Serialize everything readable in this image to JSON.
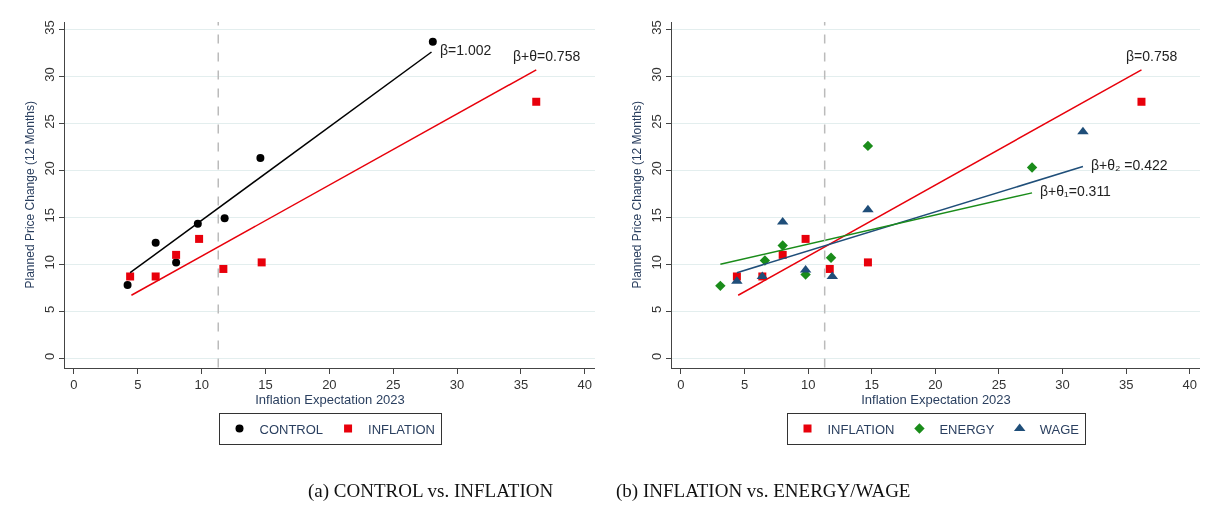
{
  "chart_data": [
    {
      "type": "scatter",
      "title": "(a) CONTROL vs. INFLATION",
      "xlabel": "Inflation Expectation 2023",
      "ylabel": "Planned Price Change (12 Months)",
      "xlim": [
        -0.7,
        40.8
      ],
      "xticks": [
        0,
        5,
        10,
        15,
        20,
        25,
        30,
        35,
        40
      ],
      "ylim": [
        -1,
        35.8
      ],
      "yticks": [
        0,
        5,
        10,
        15,
        20,
        25,
        30,
        35
      ],
      "grid": "y",
      "legend": "bottom",
      "series": [
        {
          "name": "CONTROL",
          "color": "#000000",
          "marker": "circle",
          "x": [
            4.2,
            6.4,
            8.0,
            9.7,
            11.8,
            14.6,
            28.1
          ],
          "values": [
            7.8,
            12.3,
            10.2,
            14.3,
            14.9,
            21.3,
            33.7
          ]
        },
        {
          "name": "INFLATION",
          "color": "#e8000b",
          "marker": "square",
          "x": [
            4.4,
            6.4,
            8.0,
            9.8,
            11.7,
            14.7,
            36.2
          ],
          "values": [
            8.7,
            8.7,
            11.0,
            12.7,
            9.5,
            10.2,
            27.3
          ]
        },
        {
          "type": "line",
          "color": "#000000",
          "line_style": "solid",
          "x": [
            4.4,
            28.0
          ],
          "values": [
            9.1,
            32.6
          ]
        },
        {
          "type": "line",
          "color": "#e8000b",
          "line_style": "solid",
          "x": [
            4.5,
            36.2
          ],
          "values": [
            6.7,
            30.7
          ]
        }
      ],
      "ref_lines": [
        {
          "axis": "x",
          "value": 11.3,
          "color": "#bbbbbb",
          "line_style": "dashed"
        }
      ],
      "annotations": [
        {
          "text": "β=1.002",
          "x": 28.0,
          "y": 32.6
        },
        {
          "text": "β+θ=0.758",
          "x": 36.2,
          "y": 30.7
        }
      ]
    },
    {
      "type": "scatter",
      "title": "(b) INFLATION vs. ENERGY/WAGE",
      "xlabel": "Inflation Expectation 2023",
      "ylabel": "Planned Price Change (12 Months)",
      "xlim": [
        -0.7,
        40.8
      ],
      "xticks": [
        0,
        5,
        10,
        15,
        20,
        25,
        30,
        35,
        40
      ],
      "ylim": [
        -1,
        35.8
      ],
      "yticks": [
        0,
        5,
        10,
        15,
        20,
        25,
        30,
        35
      ],
      "grid": "y",
      "legend": "bottom",
      "series": [
        {
          "name": "INFLATION",
          "color": "#e8000b",
          "marker": "square",
          "x": [
            4.4,
            6.4,
            8.0,
            9.8,
            11.7,
            14.7,
            36.2
          ],
          "values": [
            8.7,
            8.7,
            11.0,
            12.7,
            9.5,
            10.2,
            27.3
          ]
        },
        {
          "name": "ENERGY",
          "color": "#1a8c1a",
          "marker": "diamond",
          "x": [
            3.1,
            6.6,
            8.0,
            9.8,
            11.8,
            14.7,
            27.6
          ],
          "values": [
            7.7,
            10.4,
            12.0,
            8.9,
            10.7,
            22.6,
            20.3
          ]
        },
        {
          "name": "WAGE",
          "color": "#1f4e79",
          "marker": "triangle",
          "x": [
            4.4,
            6.4,
            8.0,
            9.8,
            11.9,
            14.7,
            31.6
          ],
          "values": [
            8.2,
            8.7,
            14.5,
            9.4,
            8.7,
            15.8,
            24.1
          ]
        },
        {
          "type": "line",
          "color": "#e8000b",
          "line_style": "solid",
          "x": [
            4.5,
            36.2
          ],
          "values": [
            6.7,
            30.7
          ]
        },
        {
          "type": "line",
          "color": "#1f4e79",
          "line_style": "solid",
          "x": [
            4.4,
            31.6
          ],
          "values": [
            9.1,
            20.4
          ]
        },
        {
          "type": "line",
          "color": "#1a8c1a",
          "line_style": "solid",
          "x": [
            3.1,
            27.6
          ],
          "values": [
            10.0,
            17.6
          ]
        }
      ],
      "ref_lines": [
        {
          "axis": "x",
          "value": 11.3,
          "color": "#bbbbbb",
          "line_style": "dashed"
        }
      ],
      "annotations": [
        {
          "text": "β=0.758",
          "x": 36.2,
          "y": 30.7
        },
        {
          "text": "β+θ₂ =0.422",
          "x": 31.6,
          "y": 20.4
        },
        {
          "text": "β+θ₁=0.311",
          "x": 27.6,
          "y": 17.6
        }
      ]
    }
  ]
}
